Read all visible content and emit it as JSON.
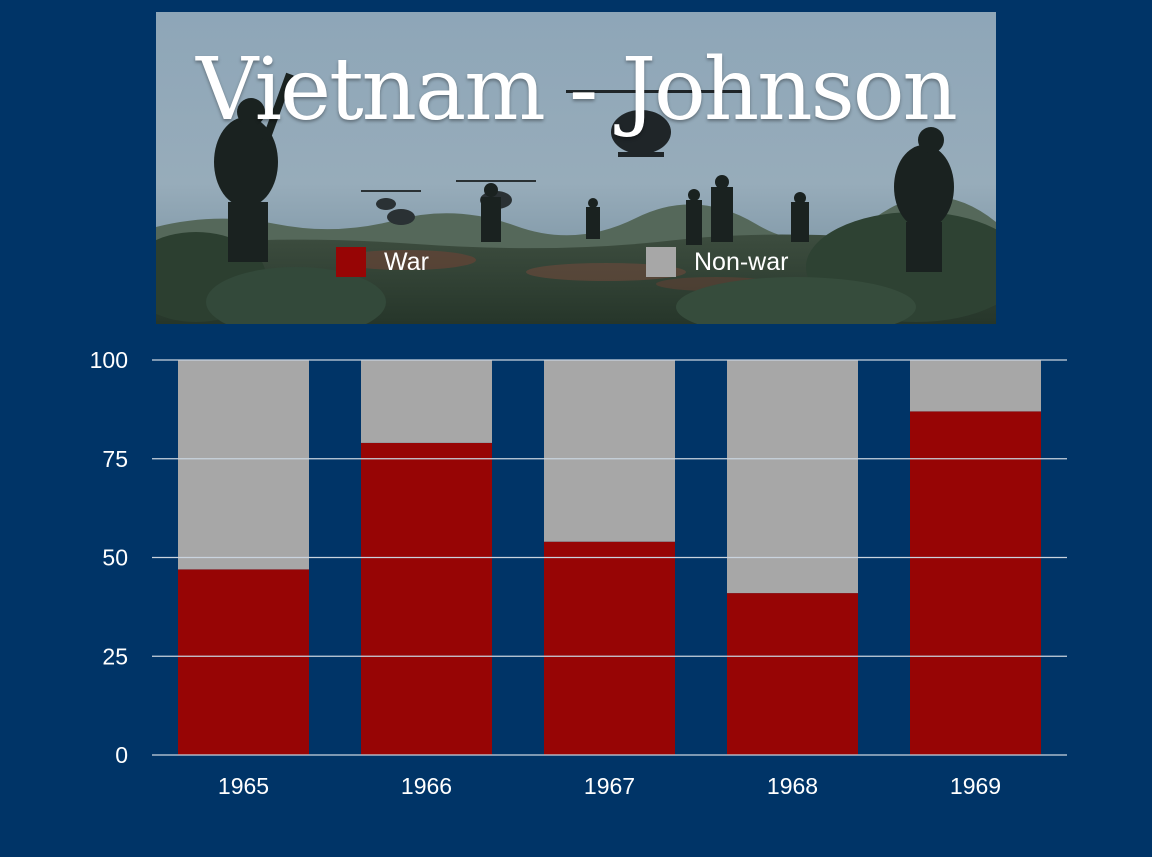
{
  "title": "Vietnam - Johnson",
  "colors": {
    "background": "#003467",
    "war": "#970505",
    "nonwar": "#a7a7a7",
    "grid": "#c9d3de"
  },
  "chart_data": {
    "type": "bar",
    "stacked": true,
    "categories": [
      "1965",
      "1966",
      "1967",
      "1968",
      "1969"
    ],
    "series": [
      {
        "name": "War",
        "values": [
          47,
          79,
          54,
          41,
          87
        ],
        "color": "#970505"
      },
      {
        "name": "Non-war",
        "values": [
          53,
          21,
          46,
          59,
          13
        ],
        "color": "#a7a7a7"
      }
    ],
    "ylim": [
      0,
      100
    ],
    "yticks": [
      0,
      25,
      50,
      75,
      100
    ],
    "grid": true,
    "legend_position": "top",
    "xlabel": "",
    "ylabel": ""
  }
}
